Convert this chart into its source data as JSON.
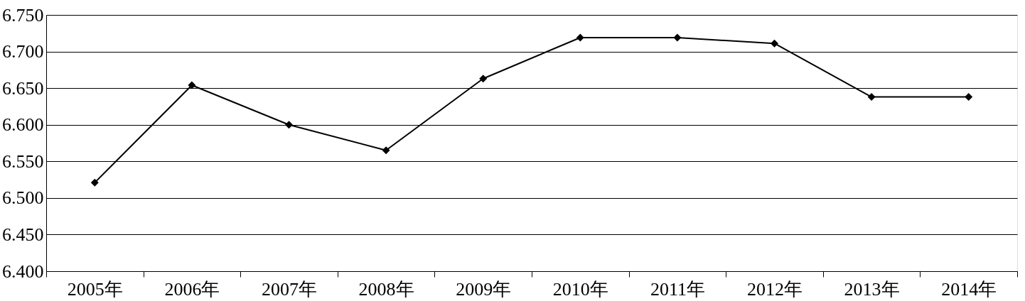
{
  "chart_data": {
    "type": "line",
    "categories": [
      "2005年",
      "2006年",
      "2007年",
      "2008年",
      "2009年",
      "2010年",
      "2011年",
      "2012年",
      "2013年",
      "2014年"
    ],
    "series": [
      {
        "color": "#000000",
        "values": [
          6.521,
          6.654,
          6.6,
          6.565,
          6.663,
          6.719,
          6.719,
          6.711,
          6.638,
          6.638
        ]
      }
    ],
    "ylim": [
      6.4,
      6.75
    ],
    "yticks": [
      {
        "value": 6.4,
        "label": "6.400"
      },
      {
        "value": 6.45,
        "label": "6.450"
      },
      {
        "value": 6.5,
        "label": "6.500"
      },
      {
        "value": 6.55,
        "label": "6.550"
      },
      {
        "value": 6.6,
        "label": "6.600"
      },
      {
        "value": 6.65,
        "label": "6.650"
      },
      {
        "value": 6.7,
        "label": "6.700"
      },
      {
        "value": 6.75,
        "label": "6.750"
      }
    ],
    "grid": "y",
    "marker": "diamond",
    "line_style": "solid"
  }
}
